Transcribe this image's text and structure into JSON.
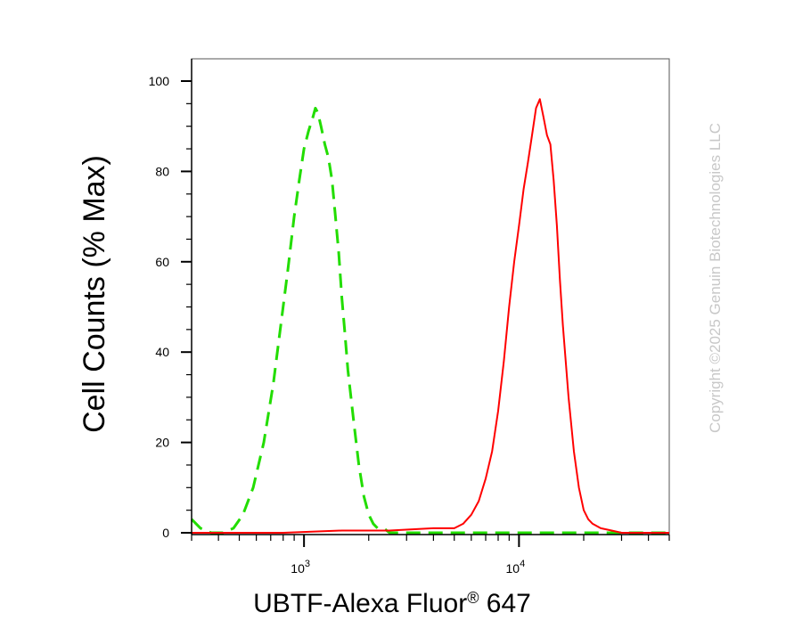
{
  "chart_data": {
    "type": "line",
    "xscale": "log",
    "xlim": [
      300,
      50000
    ],
    "ylim": [
      0,
      100
    ],
    "grid": false,
    "ylabel": "Cell Counts (% Max)",
    "xlabel": {
      "main": "UBTF-Alexa Fluor",
      "superscript": "®",
      "suffix": " 647"
    },
    "y_ticks": [
      0,
      20,
      40,
      60,
      80,
      100
    ],
    "x_ticks": [
      {
        "value": 1000,
        "base": "10",
        "exp": "3"
      },
      {
        "value": 10000,
        "base": "10",
        "exp": "4"
      }
    ],
    "series": [
      {
        "color": "#22dd00",
        "dash": "dashed",
        "x": [
          300,
          330,
          370,
          420,
          470,
          520,
          580,
          650,
          720,
          780,
          840,
          900,
          950,
          1000,
          1050,
          1100,
          1130,
          1160,
          1200,
          1250,
          1300,
          1350,
          1400,
          1450,
          1500,
          1550,
          1600,
          1700,
          1800,
          1900,
          2000,
          2100,
          2200,
          2350,
          2500,
          2700,
          3000,
          4000,
          6000,
          10000,
          20000,
          50000
        ],
        "y": [
          3,
          1,
          0,
          0,
          1,
          4,
          10,
          20,
          33,
          46,
          58,
          70,
          78,
          85,
          89,
          92,
          94,
          93,
          90,
          86,
          83,
          78,
          70,
          62,
          52,
          44,
          36,
          25,
          15,
          8,
          4,
          2,
          1,
          1,
          0,
          0,
          0,
          0,
          0,
          0,
          0,
          0
        ]
      },
      {
        "color": "#ff0000",
        "dash": "solid",
        "x": [
          300,
          800,
          1500,
          2500,
          4000,
          5000,
          5500,
          6000,
          6500,
          7000,
          7500,
          8000,
          8500,
          9000,
          9500,
          10000,
          10500,
          11000,
          11500,
          12000,
          12500,
          13000,
          13500,
          14000,
          14500,
          15000,
          15500,
          16000,
          17000,
          18000,
          19000,
          20000,
          21000,
          22000,
          24000,
          27000,
          30000,
          40000,
          50000
        ],
        "y": [
          0,
          0,
          0.5,
          0.5,
          1,
          1,
          2,
          4,
          7,
          12,
          18,
          27,
          38,
          50,
          60,
          68,
          76,
          82,
          88,
          94,
          96,
          92,
          88,
          86,
          78,
          68,
          56,
          46,
          30,
          18,
          10,
          5,
          3,
          2,
          1,
          0.5,
          0,
          0,
          0
        ]
      }
    ]
  },
  "watermark": "Copyright ©2025 Genuin Biotechnologies LLC"
}
